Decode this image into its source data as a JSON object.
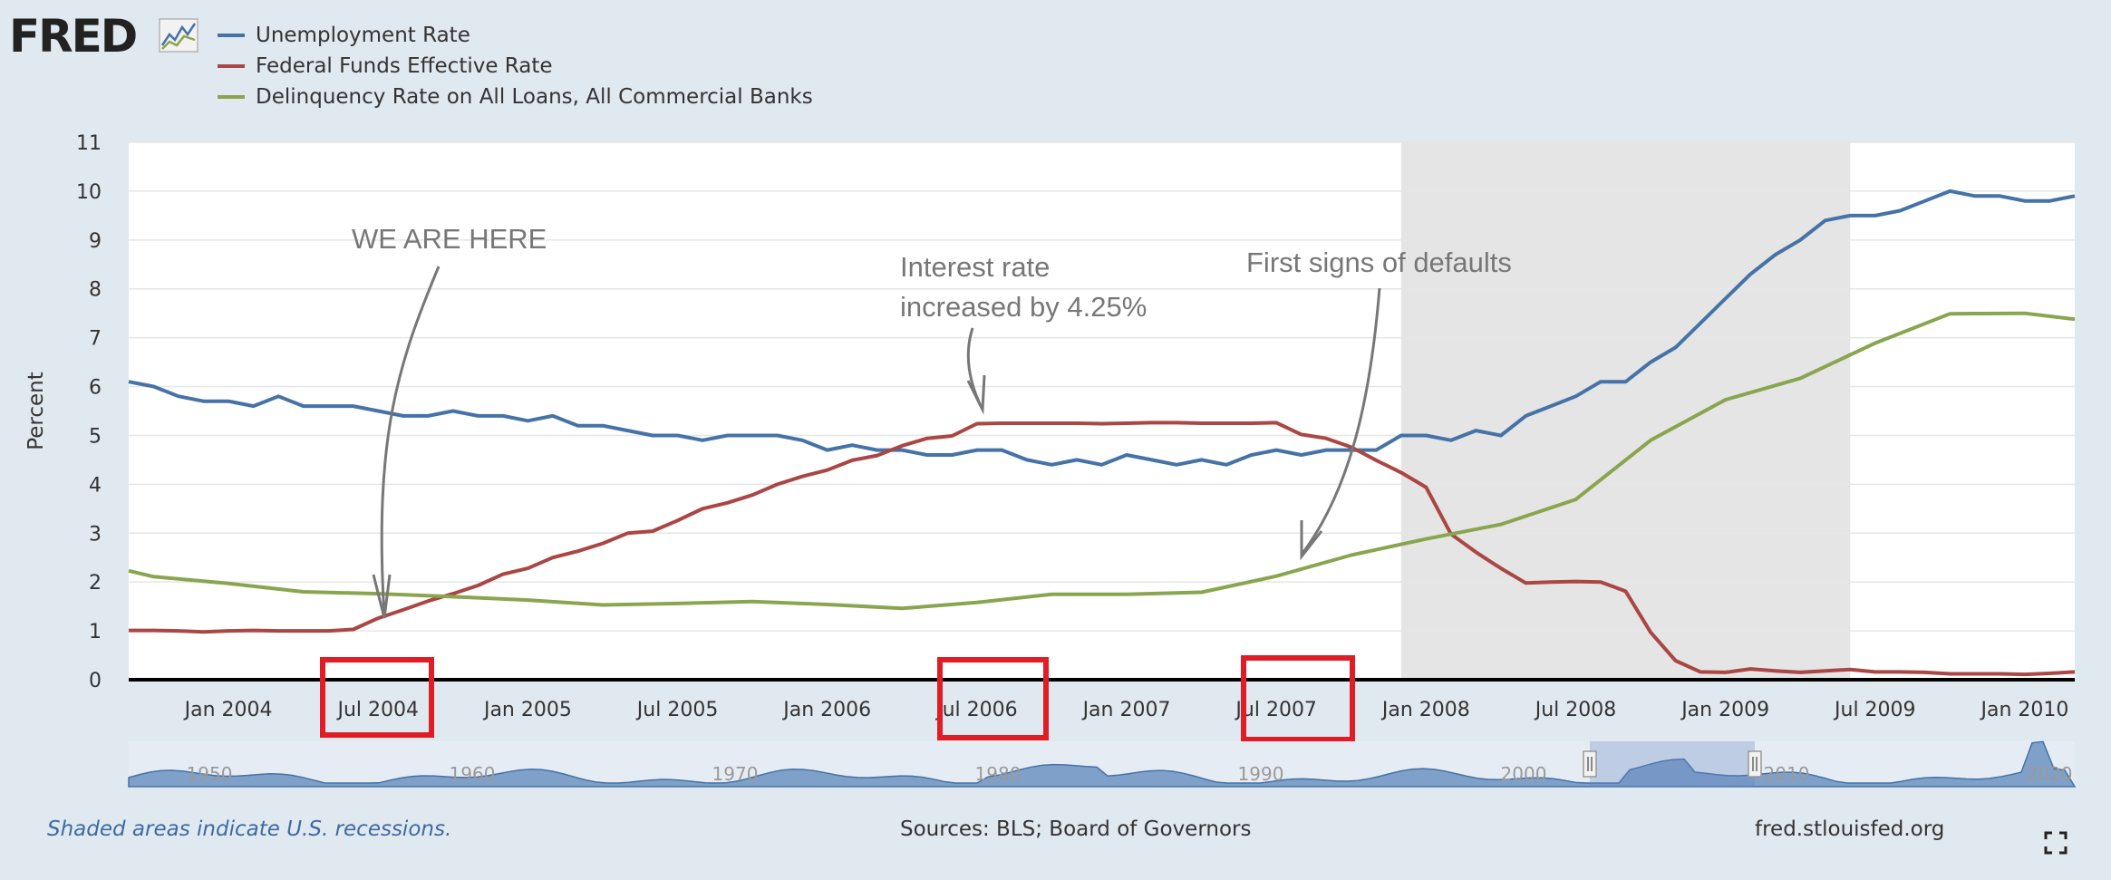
{
  "logo": {
    "text": "FRED"
  },
  "colors": {
    "unemployment": "#4572a7",
    "fedfunds": "#aa4643",
    "delinquency": "#89a54e",
    "recession": "#e5e5e5",
    "annotation": "#777777",
    "highlight": "#e01c24"
  },
  "legend": [
    {
      "label": "Unemployment Rate",
      "color": "#4572a7"
    },
    {
      "label": "Federal Funds Effective Rate",
      "color": "#aa4643"
    },
    {
      "label": "Delinquency Rate on All Loans, All Commercial Banks",
      "color": "#89a54e"
    }
  ],
  "chart_data": {
    "type": "line",
    "ylabel": "Percent",
    "ylim": [
      0,
      11
    ],
    "yticks": [
      0,
      1,
      2,
      3,
      4,
      5,
      6,
      7,
      8,
      9,
      10,
      11
    ],
    "xlim": [
      "2003-09",
      "2010-03"
    ],
    "xticks": [
      {
        "date": "2004-01",
        "label": "Jan 2004"
      },
      {
        "date": "2004-07",
        "label": "Jul 2004"
      },
      {
        "date": "2005-01",
        "label": "Jan 2005"
      },
      {
        "date": "2005-07",
        "label": "Jul 2005"
      },
      {
        "date": "2006-01",
        "label": "Jan 2006"
      },
      {
        "date": "2006-07",
        "label": "Jul 2006"
      },
      {
        "date": "2007-01",
        "label": "Jan 2007"
      },
      {
        "date": "2007-07",
        "label": "Jul 2007"
      },
      {
        "date": "2008-01",
        "label": "Jan 2008"
      },
      {
        "date": "2008-07",
        "label": "Jul 2008"
      },
      {
        "date": "2009-01",
        "label": "Jan 2009"
      },
      {
        "date": "2009-07",
        "label": "Jul 2009"
      },
      {
        "date": "2010-01",
        "label": "Jan 2010"
      }
    ],
    "recession": {
      "start": "2007-12",
      "end": "2009-06"
    },
    "grid": true,
    "series": [
      {
        "name": "Unemployment Rate",
        "x": [
          "2003-09",
          "2003-10",
          "2003-11",
          "2003-12",
          "2004-01",
          "2004-02",
          "2004-03",
          "2004-04",
          "2004-05",
          "2004-06",
          "2004-07",
          "2004-08",
          "2004-09",
          "2004-10",
          "2004-11",
          "2004-12",
          "2005-01",
          "2005-02",
          "2005-03",
          "2005-04",
          "2005-05",
          "2005-06",
          "2005-07",
          "2005-08",
          "2005-09",
          "2005-10",
          "2005-11",
          "2005-12",
          "2006-01",
          "2006-02",
          "2006-03",
          "2006-04",
          "2006-05",
          "2006-06",
          "2006-07",
          "2006-08",
          "2006-09",
          "2006-10",
          "2006-11",
          "2006-12",
          "2007-01",
          "2007-02",
          "2007-03",
          "2007-04",
          "2007-05",
          "2007-06",
          "2007-07",
          "2007-08",
          "2007-09",
          "2007-10",
          "2007-11",
          "2007-12",
          "2008-01",
          "2008-02",
          "2008-03",
          "2008-04",
          "2008-05",
          "2008-06",
          "2008-07",
          "2008-08",
          "2008-09",
          "2008-10",
          "2008-11",
          "2008-12",
          "2009-01",
          "2009-02",
          "2009-03",
          "2009-04",
          "2009-05",
          "2009-06",
          "2009-07",
          "2009-08",
          "2009-09",
          "2009-10",
          "2009-11",
          "2009-12",
          "2010-01",
          "2010-02",
          "2010-03"
        ],
        "values": [
          6.1,
          6.0,
          5.8,
          5.7,
          5.7,
          5.6,
          5.8,
          5.6,
          5.6,
          5.6,
          5.5,
          5.4,
          5.4,
          5.5,
          5.4,
          5.4,
          5.3,
          5.4,
          5.2,
          5.2,
          5.1,
          5.0,
          5.0,
          4.9,
          5.0,
          5.0,
          5.0,
          4.9,
          4.7,
          4.8,
          4.7,
          4.7,
          4.6,
          4.6,
          4.7,
          4.7,
          4.5,
          4.4,
          4.5,
          4.4,
          4.6,
          4.5,
          4.4,
          4.5,
          4.4,
          4.6,
          4.7,
          4.6,
          4.7,
          4.7,
          4.7,
          5.0,
          5.0,
          4.9,
          5.1,
          5.0,
          5.4,
          5.6,
          5.8,
          6.1,
          6.1,
          6.5,
          6.8,
          7.3,
          7.8,
          8.3,
          8.7,
          9.0,
          9.4,
          9.5,
          9.5,
          9.6,
          9.8,
          10.0,
          9.9,
          9.9,
          9.8,
          9.8,
          9.9
        ]
      },
      {
        "name": "Federal Funds Effective Rate",
        "x": [
          "2003-09",
          "2003-10",
          "2003-11",
          "2003-12",
          "2004-01",
          "2004-02",
          "2004-03",
          "2004-04",
          "2004-05",
          "2004-06",
          "2004-07",
          "2004-08",
          "2004-09",
          "2004-10",
          "2004-11",
          "2004-12",
          "2005-01",
          "2005-02",
          "2005-03",
          "2005-04",
          "2005-05",
          "2005-06",
          "2005-07",
          "2005-08",
          "2005-09",
          "2005-10",
          "2005-11",
          "2005-12",
          "2006-01",
          "2006-02",
          "2006-03",
          "2006-04",
          "2006-05",
          "2006-06",
          "2006-07",
          "2006-08",
          "2006-09",
          "2006-10",
          "2006-11",
          "2006-12",
          "2007-01",
          "2007-02",
          "2007-03",
          "2007-04",
          "2007-05",
          "2007-06",
          "2007-07",
          "2007-08",
          "2007-09",
          "2007-10",
          "2007-11",
          "2007-12",
          "2008-01",
          "2008-02",
          "2008-03",
          "2008-04",
          "2008-05",
          "2008-06",
          "2008-07",
          "2008-08",
          "2008-09",
          "2008-10",
          "2008-11",
          "2008-12",
          "2009-01",
          "2009-02",
          "2009-03",
          "2009-04",
          "2009-05",
          "2009-06",
          "2009-07",
          "2009-08",
          "2009-09",
          "2009-10",
          "2009-11",
          "2009-12",
          "2010-01",
          "2010-02",
          "2010-03"
        ],
        "values": [
          1.01,
          1.01,
          1.0,
          0.98,
          1.0,
          1.01,
          1.0,
          1.0,
          1.0,
          1.03,
          1.26,
          1.43,
          1.61,
          1.76,
          1.93,
          2.16,
          2.28,
          2.5,
          2.63,
          2.79,
          3.0,
          3.04,
          3.26,
          3.5,
          3.62,
          3.78,
          4.0,
          4.16,
          4.29,
          4.49,
          4.59,
          4.79,
          4.94,
          4.99,
          5.24,
          5.25,
          5.25,
          5.25,
          5.25,
          5.24,
          5.25,
          5.26,
          5.26,
          5.25,
          5.25,
          5.25,
          5.26,
          5.02,
          4.94,
          4.76,
          4.49,
          4.24,
          3.94,
          2.98,
          2.61,
          2.28,
          1.98,
          2.0,
          2.01,
          2.0,
          1.81,
          0.97,
          0.39,
          0.16,
          0.15,
          0.22,
          0.18,
          0.15,
          0.18,
          0.21,
          0.16,
          0.16,
          0.15,
          0.12,
          0.12,
          0.12,
          0.11,
          0.13,
          0.16
        ]
      },
      {
        "name": "Delinquency Rate on All Loans, All Commercial Banks",
        "x": [
          "2003-07",
          "2003-10",
          "2004-01",
          "2004-04",
          "2004-07",
          "2004-10",
          "2005-01",
          "2005-04",
          "2005-07",
          "2005-10",
          "2006-01",
          "2006-04",
          "2006-07",
          "2006-10",
          "2007-01",
          "2007-04",
          "2007-07",
          "2007-10",
          "2008-01",
          "2008-04",
          "2008-07",
          "2008-10",
          "2009-01",
          "2009-04",
          "2009-07",
          "2009-10",
          "2010-01",
          "2010-04"
        ],
        "values": [
          2.23,
          2.11,
          1.97,
          1.8,
          1.76,
          1.7,
          1.63,
          1.53,
          1.56,
          1.6,
          1.54,
          1.46,
          1.58,
          1.75,
          1.75,
          1.79,
          2.12,
          2.55,
          2.88,
          3.18,
          3.69,
          4.9,
          5.73,
          6.17,
          6.89,
          7.49,
          7.5,
          7.38
        ]
      }
    ]
  },
  "annotations": [
    {
      "text": "WE ARE HERE"
    },
    {
      "text": "Interest rate",
      "text2": "increased by 4.25%"
    },
    {
      "text": "First signs of defaults"
    }
  ],
  "navigator": {
    "labels": [
      "1950",
      "1960",
      "1970",
      "1980",
      "1990",
      "2000",
      "2010",
      "2020"
    ]
  },
  "footer": {
    "note": "Shaded areas indicate U.S. recessions.",
    "sources": "Sources: BLS; Board of Governors",
    "site": "fred.stlouisfed.org"
  }
}
